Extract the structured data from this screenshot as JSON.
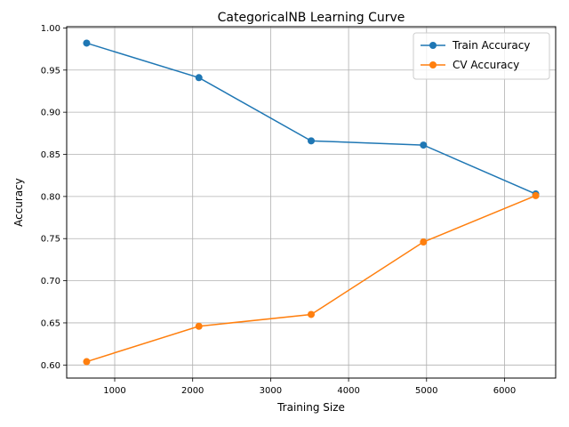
{
  "chart_data": {
    "type": "line",
    "title": "CategoricalNB Learning Curve",
    "xlabel": "Training Size",
    "ylabel": "Accuracy",
    "x": [
      640,
      2080,
      3520,
      4960,
      6400
    ],
    "xlim": [
      384,
      6656
    ],
    "ylim": [
      0.5845,
      1.0015
    ],
    "xticks": [
      1000,
      2000,
      3000,
      4000,
      5000,
      6000
    ],
    "xtick_labels": [
      "1000",
      "2000",
      "3000",
      "4000",
      "5000",
      "6000"
    ],
    "yticks": [
      0.6,
      0.65,
      0.7,
      0.75,
      0.8,
      0.85,
      0.9,
      0.95,
      1.0
    ],
    "ytick_labels": [
      "0.60",
      "0.65",
      "0.70",
      "0.75",
      "0.80",
      "0.85",
      "0.90",
      "0.95",
      "1.00"
    ],
    "grid": true,
    "legend_position": "upper-right",
    "series": [
      {
        "name": "Train Accuracy",
        "color": "#1f77b4",
        "marker": "circle",
        "values": [
          0.982,
          0.941,
          0.866,
          0.861,
          0.803
        ]
      },
      {
        "name": "CV Accuracy",
        "color": "#ff7f0e",
        "marker": "circle",
        "values": [
          0.604,
          0.646,
          0.66,
          0.746,
          0.801
        ]
      }
    ]
  }
}
